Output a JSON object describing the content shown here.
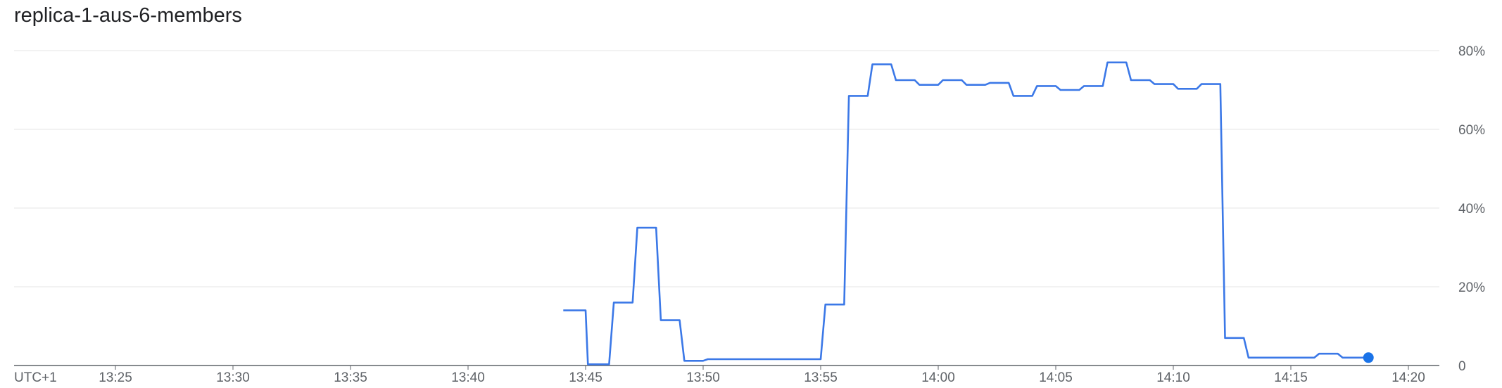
{
  "chart_data": {
    "type": "line",
    "title": "replica-1-aus-6-members",
    "timezone_label": "UTC+1",
    "x_tick_labels": [
      "13:25",
      "13:30",
      "13:35",
      "13:40",
      "13:45",
      "13:50",
      "13:55",
      "14:00",
      "14:05",
      "14:10",
      "14:15",
      "14:20"
    ],
    "x_tick_minutes": [
      25,
      30,
      35,
      40,
      45,
      50,
      55,
      60,
      65,
      70,
      75,
      80
    ],
    "xlim_minutes": [
      20.8,
      81.0
    ],
    "y_tick_labels": [
      "0",
      "20%",
      "40%",
      "60%",
      "80%"
    ],
    "y_tick_values": [
      0,
      20,
      40,
      60,
      80
    ],
    "ylim": [
      0,
      80
    ],
    "grid": true,
    "series": [
      {
        "color": "#3b78e7",
        "x_minutes": [
          44.05,
          45.0,
          45.1,
          46.0,
          46.2,
          47.0,
          47.2,
          48.0,
          48.2,
          49.0,
          49.2,
          50.0,
          50.2,
          55.0,
          55.2,
          56.0,
          56.2,
          57.0,
          57.2,
          58.0,
          58.2,
          59.0,
          59.2,
          60.0,
          60.2,
          61.0,
          61.2,
          62.0,
          62.2,
          63.0,
          63.2,
          64.0,
          64.2,
          65.0,
          65.2,
          66.0,
          66.2,
          67.0,
          67.2,
          68.0,
          68.2,
          69.0,
          69.2,
          70.0,
          70.2,
          71.0,
          71.2,
          72.0,
          72.2,
          73.0,
          73.2,
          74.0,
          74.2,
          75.0,
          75.2,
          76.0,
          76.2,
          77.0,
          77.2,
          78.0,
          78.3
        ],
        "y": [
          14,
          14,
          0.3,
          0.3,
          16,
          16,
          35,
          35,
          11.5,
          11.5,
          1.2,
          1.2,
          1.6,
          1.6,
          15.5,
          15.5,
          68.5,
          68.5,
          76.5,
          76.5,
          72.5,
          72.5,
          71.3,
          71.3,
          72.5,
          72.5,
          71.3,
          71.3,
          71.8,
          71.8,
          68.5,
          68.5,
          71,
          71,
          70,
          70,
          71,
          71,
          77,
          77,
          72.5,
          72.5,
          71.5,
          71.5,
          70.3,
          70.3,
          71.5,
          71.5,
          7,
          7,
          2,
          2,
          2,
          2,
          2,
          2,
          3,
          3,
          2,
          2,
          2
        ],
        "last_point": {
          "x_minute": 78.3,
          "y": 2
        }
      }
    ]
  }
}
